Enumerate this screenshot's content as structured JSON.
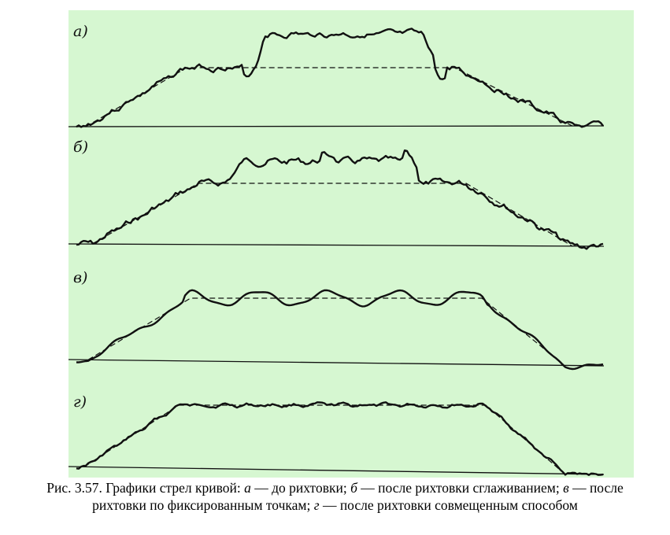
{
  "figure": {
    "panels": [
      {
        "label": "а)"
      },
      {
        "label": "б)"
      },
      {
        "label": "в)"
      },
      {
        "label": "г)"
      }
    ]
  },
  "caption": {
    "number": "Рис. 3.57.",
    "text_1": " Графики стрел кривой: ",
    "a": "а",
    "text_2": " — до рихтовки; ",
    "b": "б",
    "text_3": " — после рихтовки сглаживанием; ",
    "v": "в",
    "text_4": " — после рихтовки по фиксированным точкам; ",
    "g": "г",
    "text_5": " — после рихтовки совмещенным способом"
  },
  "colors": {
    "background": "#d6f7d1",
    "ink": "#111111"
  }
}
